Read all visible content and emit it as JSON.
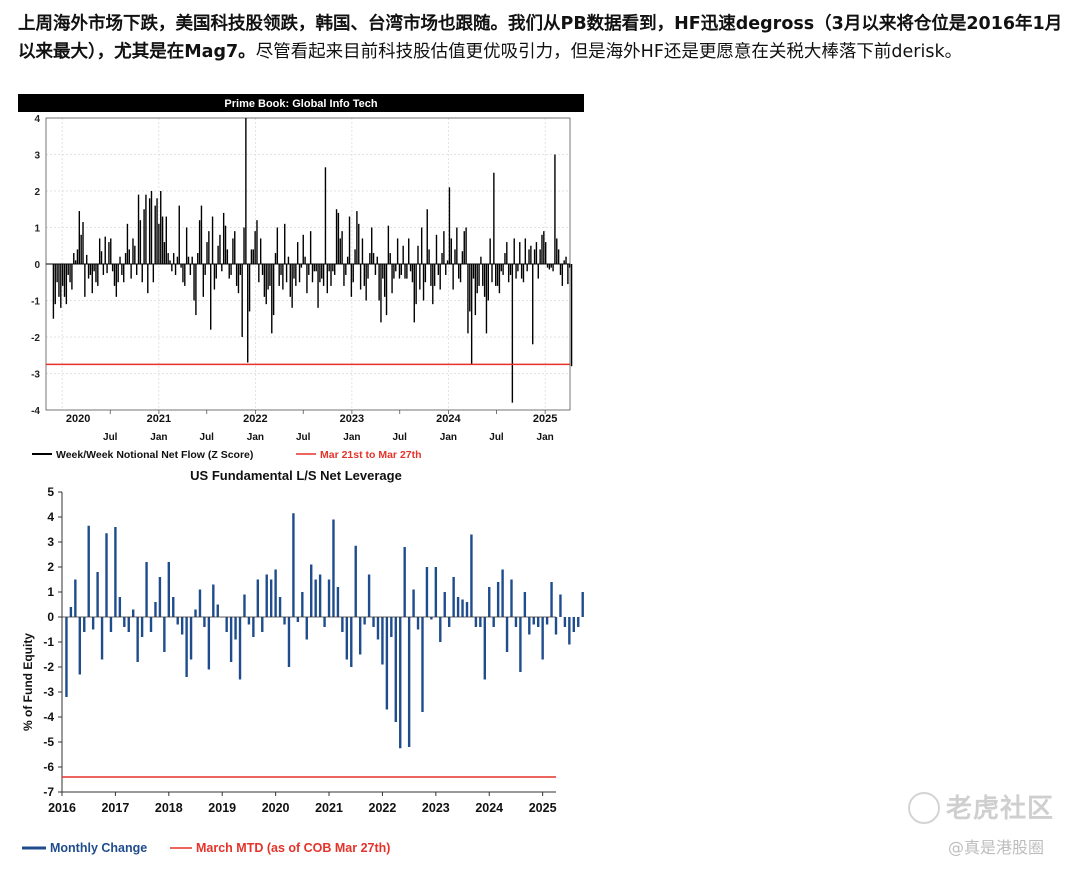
{
  "post": {
    "bold_text": "上周海外市场下跌，美国科技股领跌，韩国、台湾市场也跟随。我们从PB数据看到，HF迅速degross（3月以来将仓位是2016年1月以来最大），尤其是在Mag7。",
    "normal_text": "尽管看起来目前科技股估值更优吸引力，但是海外HF还是更愿意在关税大棒落下前derisk。"
  },
  "watermark": {
    "brand": "老虎社区",
    "author": "@真是港股圈",
    "icon": "tiger-logo-icon"
  },
  "chart_data": [
    {
      "type": "bar",
      "title": "Prime Book: Global Info Tech",
      "ylim": [
        -4,
        4
      ],
      "yticks": [
        "4",
        "3",
        "2",
        "1",
        "0",
        "-1",
        "-2",
        "-3",
        "-4"
      ],
      "x_range": [
        "2019-11-01",
        "2025-04-05"
      ],
      "year_labels": [
        "2020",
        "2021",
        "2022",
        "2023",
        "2024",
        "2025"
      ],
      "month_labels": [
        "Jul",
        "Jan",
        "Jul",
        "Jan",
        "Jul",
        "Jan",
        "Jul",
        "Jan",
        "Jul",
        "Jan"
      ],
      "grid": true,
      "legend_position": "bottom",
      "series": [
        {
          "name": "Week/Week Notional Net Flow (Z Score)",
          "color": "#000000",
          "x_start": "2019-11-29",
          "step_days": 7,
          "values": [
            -1.5,
            -1.1,
            -0.5,
            -0.9,
            -1.2,
            -0.6,
            -0.9,
            -1.1,
            -0.3,
            -0.5,
            -0.7,
            0.3,
            0.1,
            0.4,
            1.45,
            0.8,
            1.15,
            -0.9,
            0.25,
            -0.4,
            -0.3,
            -0.8,
            -0.2,
            -0.5,
            -0.6,
            0.7,
            0.35,
            -0.3,
            0.75,
            -0.25,
            0.6,
            0.7,
            -0.2,
            -0.6,
            -0.9,
            -0.5,
            0.2,
            -0.3,
            -0.5,
            0.3,
            1.1,
            0.4,
            -0.4,
            0.7,
            0.5,
            -0.3,
            1.9,
            1.2,
            -0.5,
            1.5,
            1.9,
            -0.8,
            1.8,
            2.0,
            -0.5,
            1.6,
            1.8,
            1.1,
            2.0,
            1.3,
            0.6,
            1.3,
            0.3,
            0.1,
            -0.2,
            0.3,
            -0.3,
            0.2,
            1.6,
            -0.1,
            -0.5,
            -0.6,
            1.0,
            0.2,
            -0.3,
            0.2,
            -1.0,
            -1.4,
            0.3,
            1.2,
            1.6,
            -0.9,
            -0.3,
            0.6,
            0.9,
            -1.8,
            1.3,
            -0.7,
            -0.4,
            0.5,
            0.8,
            -0.2,
            1.4,
            1.05,
            0.4,
            -0.4,
            -0.3,
            0.7,
            0.9,
            -0.6,
            -0.8,
            -0.3,
            -2.0,
            1.0,
            4.0,
            -2.7,
            -1.3,
            0.4,
            0.4,
            0.9,
            1.2,
            -0.5,
            0.7,
            -0.3,
            -0.9,
            -1.1,
            -0.7,
            -0.6,
            -1.9,
            -1.4,
            0.3,
            1.0,
            -0.6,
            -0.3,
            -0.7,
            1.1,
            -0.5,
            0.2,
            -0.9,
            -1.2,
            -0.4,
            -0.6,
            0.6,
            -0.5,
            -0.1,
            0.8,
            0.2,
            -0.8,
            -0.3,
            0.9,
            -0.5,
            -0.2,
            -0.2,
            -1.2,
            -0.5,
            -0.4,
            -0.6,
            2.65,
            -0.8,
            -0.2,
            -0.6,
            -0.2,
            -0.3,
            1.5,
            1.4,
            0.7,
            0.9,
            -0.6,
            -0.3,
            0.2,
            1.3,
            -0.9,
            -0.5,
            0.4,
            1.45,
            1.1,
            -0.7,
            0.7,
            -0.6,
            -1.0,
            -0.4,
            0.3,
            1.0,
            0.3,
            -0.3,
            0.2,
            -1.0,
            -1.6,
            -0.4,
            -0.9,
            -1.4,
            1.05,
            0.3,
            -0.8,
            -0.4,
            -0.2,
            0.7,
            -0.4,
            -0.3,
            0.5,
            -0.4,
            -0.4,
            0.7,
            -0.2,
            -0.5,
            -1.6,
            -1.1,
            0.5,
            -0.7,
            1.0,
            -1.0,
            -0.5,
            1.5,
            0.4,
            -0.6,
            -1.1,
            -0.6,
            0.8,
            -0.3,
            -0.7,
            0.3,
            0.9,
            -0.3,
            0.1,
            2.1,
            0.7,
            -0.7,
            0.4,
            1.0,
            -0.4,
            -0.5,
            0.35,
            0.9,
            1.0,
            -1.9,
            -1.3,
            -2.75,
            -0.4,
            -1.4,
            -0.8,
            -0.6,
            0.2,
            -0.6,
            -0.9,
            -1.9,
            -1.0,
            0.7,
            -0.5,
            2.5,
            -0.6,
            -0.6,
            -0.8,
            -0.2,
            -0.3,
            0.3,
            0.6,
            -0.5,
            -0.3,
            -3.8,
            0.7,
            -0.4,
            -0.2,
            0.6,
            -0.4,
            -0.5,
            0.7,
            -0.2,
            0.4,
            0.5,
            -2.2,
            0.4,
            0.6,
            -0.4,
            0.4,
            0.8,
            0.9,
            0.6,
            -0.1,
            -0.15,
            -0.1,
            -0.2,
            3.0,
            0.7,
            0.4,
            -0.3,
            -0.6,
            0.1,
            0.2,
            -0.55,
            -0.1,
            -2.8
          ]
        },
        {
          "name": "Mar 21st to Mar 27th",
          "color": "#e5332a",
          "value": -2.75
        }
      ]
    },
    {
      "type": "bar",
      "title": "US Fundamental L/S Net Leverage",
      "ylabel": "% of Fund Equity",
      "ylim": [
        -7,
        5
      ],
      "yticks": [
        "5",
        "4",
        "3",
        "2",
        "1",
        "0",
        "-1",
        "-2",
        "-3",
        "-4",
        "-5",
        "-6",
        "-7"
      ],
      "x_range": [
        "2016-01",
        "2025-04"
      ],
      "year_labels": [
        "2016",
        "2017",
        "2018",
        "2019",
        "2020",
        "2021",
        "2022",
        "2023",
        "2024",
        "2025"
      ],
      "grid": false,
      "legend_position": "bottom",
      "series": [
        {
          "name": "Monthly Change",
          "color": "#1f4c8c",
          "x_start": "2016-02",
          "values": [
            -3.2,
            0.4,
            1.5,
            -2.3,
            -0.6,
            3.65,
            -0.5,
            1.8,
            -1.7,
            3.35,
            -0.6,
            3.6,
            0.8,
            -0.4,
            -0.6,
            0.3,
            -1.8,
            -0.8,
            2.2,
            -0.6,
            0.6,
            1.6,
            -1.4,
            2.2,
            0.8,
            -0.3,
            -0.7,
            -2.4,
            -1.7,
            0.3,
            1.1,
            -0.4,
            -2.1,
            1.3,
            0.5,
            0,
            -0.6,
            -1.8,
            -0.9,
            -2.5,
            0.9,
            -0.3,
            -0.8,
            1.5,
            -0.6,
            1.7,
            1.5,
            1.9,
            0.8,
            -0.3,
            -2.0,
            4.15,
            -0.2,
            1.0,
            -0.9,
            2.1,
            1.5,
            1.7,
            -0.4,
            1.5,
            3.9,
            1.2,
            -0.6,
            -1.7,
            -2.0,
            2.85,
            -1.5,
            -0.3,
            1.7,
            -0.4,
            -0.9,
            -1.9,
            -3.7,
            -0.8,
            -4.2,
            -5.25,
            2.8,
            -5.2,
            1.1,
            -0.5,
            -3.8,
            2.0,
            -0.1,
            2.0,
            -1.0,
            1.0,
            -0.4,
            1.6,
            0.8,
            0.7,
            0.6,
            3.3,
            -0.4,
            -0.4,
            -2.5,
            1.2,
            -0.4,
            1.4,
            1.9,
            -1.4,
            1.5,
            -0.4,
            -2.2,
            1.0,
            -0.7,
            -0.3,
            -0.4,
            -1.7,
            -0.3,
            1.4,
            -0.7,
            0.9,
            -0.4,
            -1.1,
            -0.6,
            -0.4,
            1.0,
            -0.9,
            -1.9,
            1.9,
            -6.4
          ]
        },
        {
          "name": "March MTD (as of COB Mar 27th)",
          "color": "#e5332a",
          "value": -6.4
        }
      ]
    }
  ]
}
